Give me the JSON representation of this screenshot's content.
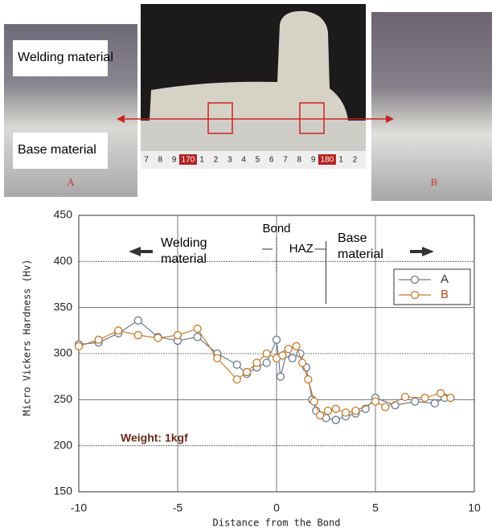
{
  "photos": {
    "left_labels": [
      "Welding material",
      "Base material"
    ],
    "left_marker": "A",
    "right_marker": "B",
    "ruler": [
      "7",
      "8",
      "9",
      "170",
      "1",
      "2",
      "3",
      "4",
      "5",
      "6",
      "7",
      "8",
      "9",
      "180",
      "1",
      "2"
    ]
  },
  "chart_data": {
    "type": "line",
    "xlabel": "Distance from the Bond",
    "ylabel": "Micro Vickers Hardness (Hv)",
    "xlim": [
      -10,
      10
    ],
    "ylim": [
      150,
      450
    ],
    "xticks": [
      -10,
      -5,
      0,
      5,
      10
    ],
    "yticks": [
      150,
      200,
      250,
      300,
      350,
      400,
      450
    ],
    "grid": true,
    "legend": "upper right",
    "annotations": {
      "welding": "Welding material",
      "bond": "Bond",
      "haz": "HAZ",
      "base": "Base material",
      "weight": "Weight: 1kgf"
    },
    "series": [
      {
        "name": "A",
        "color": "#6b7a8f",
        "x": [
          -10,
          -9,
          -8,
          -7,
          -6,
          -5,
          -4,
          -3,
          -2,
          -1.5,
          -1,
          -0.5,
          0,
          0.2,
          0.5,
          0.8,
          1.2,
          1.5,
          1.8,
          2,
          2.5,
          3,
          3.5,
          4,
          4.5,
          5,
          6,
          7,
          8,
          8.5
        ],
        "values": [
          310,
          312,
          322,
          336,
          318,
          314,
          318,
          300,
          288,
          278,
          285,
          290,
          315,
          275,
          300,
          295,
          300,
          285,
          250,
          238,
          230,
          228,
          232,
          235,
          240,
          252,
          244,
          248,
          246,
          252
        ]
      },
      {
        "name": "B",
        "color": "#c8792a",
        "x": [
          -10,
          -9,
          -8,
          -7,
          -6,
          -5,
          -4,
          -3,
          -2,
          -1.5,
          -1,
          -0.5,
          0,
          0.3,
          0.6,
          1,
          1.3,
          1.6,
          1.9,
          2.2,
          2.6,
          3,
          3.5,
          4,
          5,
          5.5,
          6.5,
          7.5,
          8.3,
          8.8
        ],
        "values": [
          308,
          315,
          325,
          320,
          317,
          320,
          327,
          295,
          272,
          280,
          290,
          300,
          295,
          298,
          305,
          308,
          290,
          272,
          248,
          233,
          238,
          240,
          236,
          238,
          248,
          242,
          253,
          252,
          257,
          252
        ]
      }
    ]
  }
}
